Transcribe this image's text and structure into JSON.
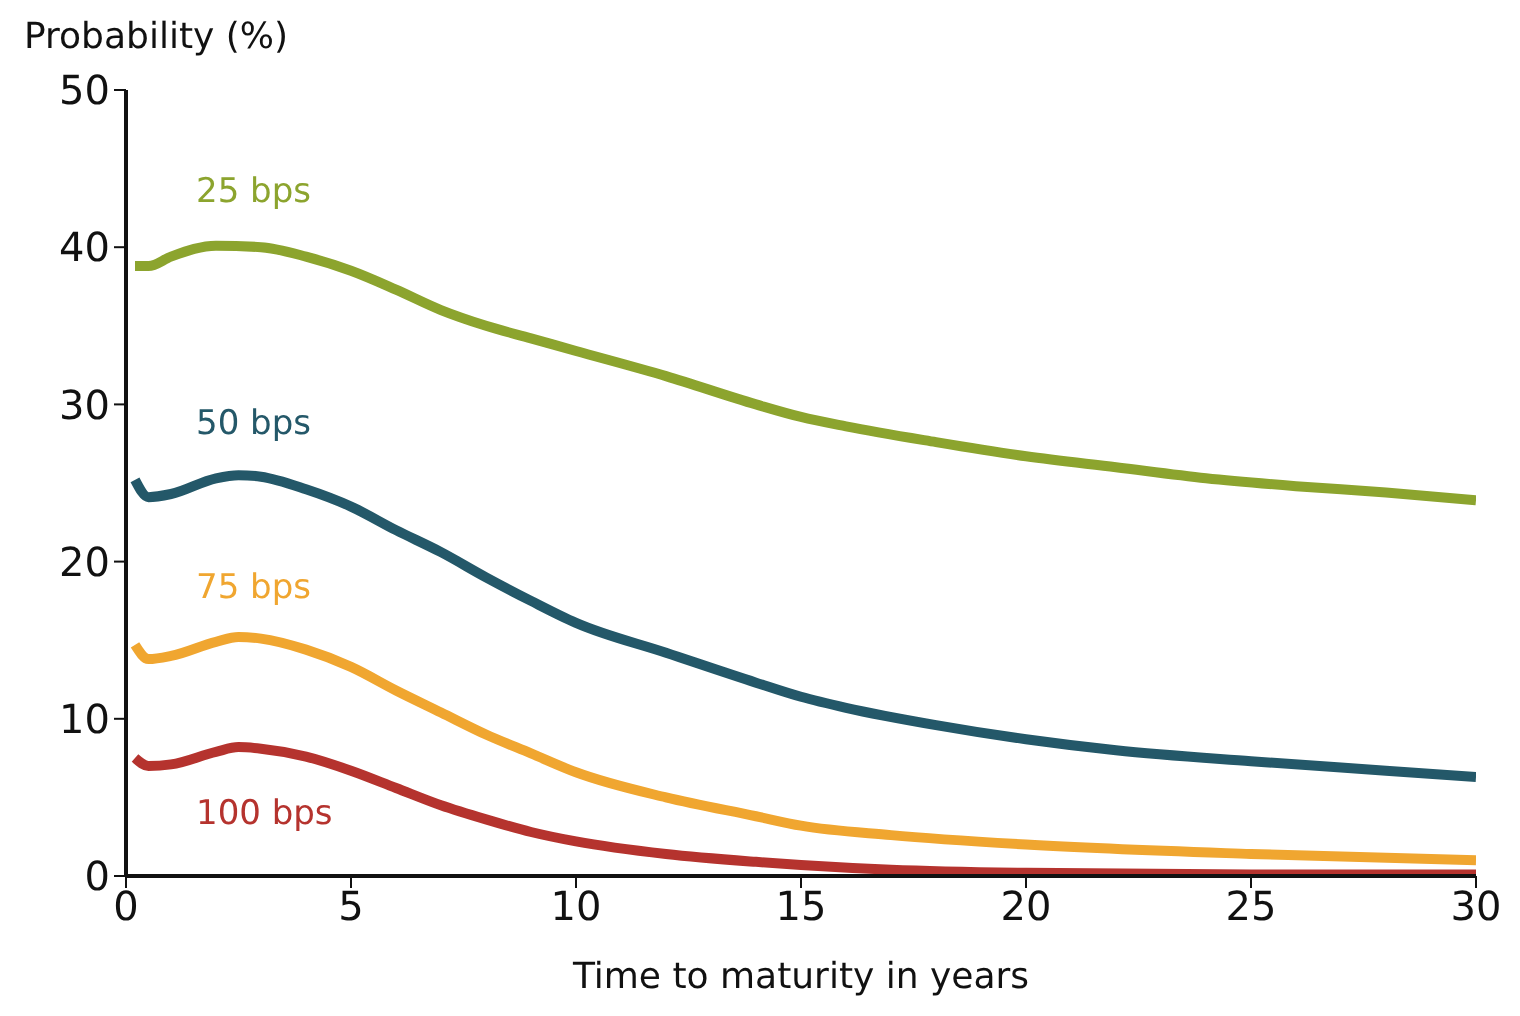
{
  "chart_data": {
    "type": "line",
    "ylabel": "Probability (%)",
    "xlabel": "Time to maturity in years",
    "xlim": [
      0,
      30
    ],
    "xticks": [
      0,
      5,
      10,
      15,
      20,
      25,
      30
    ],
    "ylim": [
      0,
      50
    ],
    "yticks": [
      0,
      10,
      20,
      30,
      40,
      50
    ],
    "grid": false,
    "legend": false,
    "marker": "none",
    "line_style": "solid",
    "series": [
      {
        "name": "25 bps",
        "color": "#8ca42e",
        "x": [
          0.2,
          0.5,
          1,
          2,
          3,
          4,
          5,
          6,
          7,
          8,
          9,
          10,
          12,
          14,
          15,
          16,
          18,
          20,
          22,
          24,
          26,
          28,
          30
        ],
        "values": [
          38.8,
          38.8,
          39.4,
          40.1,
          40.0,
          39.4,
          38.5,
          37.3,
          36.0,
          35.0,
          34.2,
          33.4,
          31.8,
          30.0,
          29.2,
          28.6,
          27.6,
          26.7,
          26.0,
          25.3,
          24.8,
          24.4,
          23.9
        ]
      },
      {
        "name": "50 bps",
        "color": "#245869",
        "x": [
          0.2,
          0.5,
          1,
          2,
          2.5,
          3,
          4,
          5,
          6,
          7,
          8,
          9,
          10,
          12,
          14,
          15,
          16,
          18,
          20,
          22,
          25,
          28,
          30
        ],
        "values": [
          25.2,
          24.1,
          24.3,
          25.3,
          25.5,
          25.4,
          24.6,
          23.5,
          22.0,
          20.6,
          19.0,
          17.5,
          16.1,
          14.2,
          12.3,
          11.4,
          10.7,
          9.6,
          8.7,
          8.0,
          7.3,
          6.7,
          6.3
        ]
      },
      {
        "name": "75 bps",
        "color": "#f0a630",
        "x": [
          0.2,
          0.5,
          1,
          2,
          2.5,
          3,
          4,
          5,
          6,
          7,
          8,
          9,
          10,
          12,
          14,
          15,
          17,
          20,
          25,
          30
        ],
        "values": [
          14.7,
          13.8,
          14.0,
          14.9,
          15.2,
          15.1,
          14.4,
          13.3,
          11.8,
          10.4,
          9.0,
          7.8,
          6.6,
          5.0,
          3.8,
          3.2,
          2.6,
          2.0,
          1.4,
          1.0
        ]
      },
      {
        "name": "100 bps",
        "color": "#b5332e",
        "x": [
          0.2,
          0.5,
          1,
          2,
          2.5,
          3,
          4,
          5,
          6,
          7,
          8,
          9,
          10,
          12,
          14,
          15,
          17,
          20,
          25,
          30
        ],
        "values": [
          7.5,
          7.0,
          7.1,
          7.9,
          8.2,
          8.1,
          7.6,
          6.7,
          5.6,
          4.5,
          3.6,
          2.8,
          2.2,
          1.4,
          0.9,
          0.7,
          0.4,
          0.2,
          0.1,
          0.1
        ]
      }
    ]
  }
}
